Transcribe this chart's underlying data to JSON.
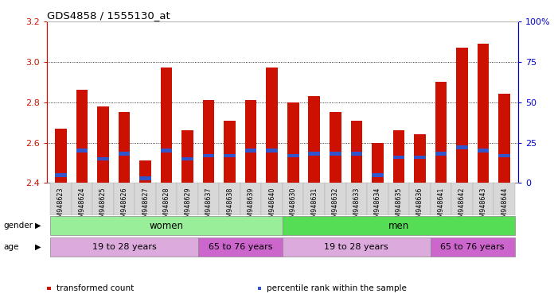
{
  "title": "GDS4858 / 1555130_at",
  "samples": [
    "GSM948623",
    "GSM948624",
    "GSM948625",
    "GSM948626",
    "GSM948627",
    "GSM948628",
    "GSM948629",
    "GSM948637",
    "GSM948638",
    "GSM948639",
    "GSM948640",
    "GSM948630",
    "GSM948631",
    "GSM948632",
    "GSM948633",
    "GSM948634",
    "GSM948635",
    "GSM948636",
    "GSM948641",
    "GSM948642",
    "GSM948643",
    "GSM948644"
  ],
  "transformed_count": [
    2.67,
    2.86,
    2.78,
    2.75,
    2.51,
    2.97,
    2.66,
    2.81,
    2.71,
    2.81,
    2.97,
    2.8,
    2.83,
    2.75,
    2.71,
    2.6,
    2.66,
    2.64,
    2.9,
    3.07,
    3.09,
    2.84
  ],
  "percentile_rank": [
    5,
    20,
    15,
    18,
    3,
    20,
    15,
    17,
    17,
    20,
    20,
    17,
    18,
    18,
    18,
    5,
    16,
    16,
    18,
    22,
    20,
    17
  ],
  "y_min": 2.4,
  "y_max": 3.2,
  "y_ticks": [
    2.4,
    2.6,
    2.8,
    3.0,
    3.2
  ],
  "right_y_ticks": [
    0,
    25,
    50,
    75,
    100
  ],
  "bar_color": "#cc1100",
  "blue_color": "#3355cc",
  "bar_width": 0.55,
  "gender_groups": [
    {
      "label": "women",
      "start": 0,
      "end": 10,
      "color": "#99ee99"
    },
    {
      "label": "men",
      "start": 11,
      "end": 21,
      "color": "#55dd55"
    }
  ],
  "age_groups": [
    {
      "label": "19 to 28 years",
      "start": 0,
      "end": 6,
      "color": "#ddaadd"
    },
    {
      "label": "65 to 76 years",
      "start": 7,
      "end": 10,
      "color": "#cc66cc"
    },
    {
      "label": "19 to 28 years",
      "start": 11,
      "end": 17,
      "color": "#ddaadd"
    },
    {
      "label": "65 to 76 years",
      "start": 18,
      "end": 21,
      "color": "#cc66cc"
    }
  ],
  "gender_label": "gender",
  "age_label": "age",
  "legend_items": [
    {
      "label": "transformed count",
      "color": "#cc1100"
    },
    {
      "label": "percentile rank within the sample",
      "color": "#3355cc"
    }
  ],
  "bg_color": "#ffffff",
  "axis_color_left": "#cc1100",
  "axis_color_right": "#0000cc",
  "xlim_left": -0.65,
  "xlim_right": 21.65
}
